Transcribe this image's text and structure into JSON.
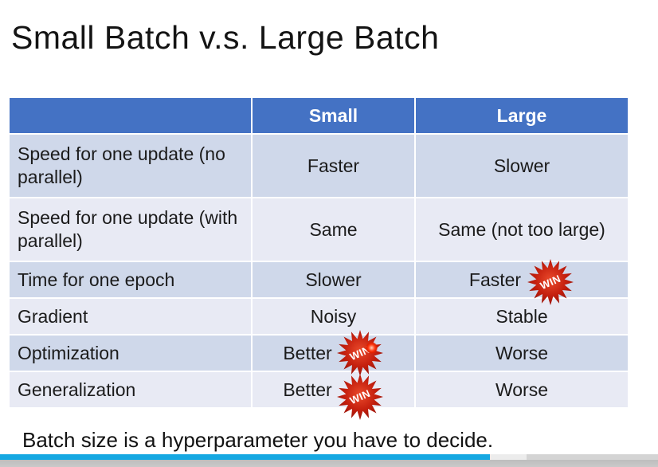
{
  "slide": {
    "title": "Small Batch v.s. Large Batch",
    "footer": "Batch size is a hyperparameter you have to decide."
  },
  "table": {
    "header": {
      "label": "",
      "small": "Small",
      "large": "Large"
    },
    "rows": [
      {
        "label": "Speed for one update (no parallel)",
        "small": "Faster",
        "large": "Slower"
      },
      {
        "label": "Speed for one update (with parallel)",
        "small": "Same",
        "large": "Same (not too large)"
      },
      {
        "label": "Time for one epoch",
        "small": "Slower",
        "large": "Faster"
      },
      {
        "label": "Gradient",
        "small": "Noisy",
        "large": "Stable"
      },
      {
        "label": "Optimization",
        "small": "Better",
        "large": "Worse"
      },
      {
        "label": "Generalization",
        "small": "Better",
        "large": "Worse"
      }
    ]
  },
  "badge": {
    "label": "WIN"
  },
  "colors": {
    "header_bg": "#4472c4",
    "header_text": "#ffffff",
    "row_band_dark": "#cfd8ea",
    "row_band_light": "#e8eaf4",
    "badge_red": "#c01a08",
    "progress_played": "#16a8e2",
    "laser_dot": "#ff3c14"
  },
  "player": {
    "progress_percent": 74.5,
    "buffered_percent": 80
  }
}
